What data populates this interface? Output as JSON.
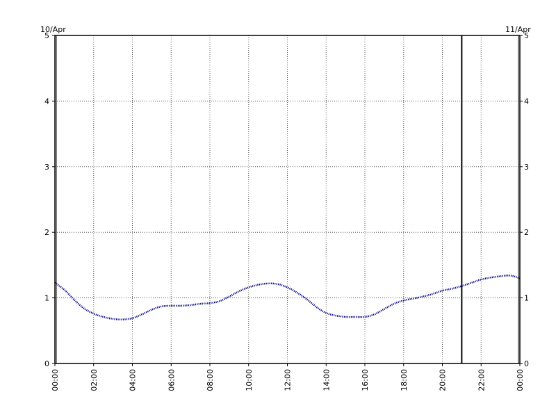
{
  "chart_data": {
    "type": "line",
    "title": "",
    "xlabel": "",
    "ylabel": "",
    "date_left": "10/Apr",
    "date_right": "11/Apr",
    "x_tick_labels": [
      "00:00",
      "02:00",
      "04:00",
      "06:00",
      "08:00",
      "10:00",
      "12:00",
      "14:00",
      "16:00",
      "18:00",
      "20:00",
      "22:00",
      "00:00"
    ],
    "y_tick_labels": [
      "0",
      "1",
      "2",
      "3",
      "4",
      "5"
    ],
    "xlim_hours": [
      0,
      24
    ],
    "ylim": [
      0,
      5
    ],
    "grid": true,
    "marker_hour": 21,
    "series": [
      {
        "color": "#000080",
        "style": "dotted",
        "x_hours": [
          0,
          0.5,
          1,
          1.5,
          2,
          2.5,
          3,
          3.5,
          4,
          4.5,
          5,
          5.5,
          6,
          6.5,
          7,
          7.5,
          8,
          8.5,
          9,
          9.5,
          10,
          10.5,
          11,
          11.5,
          12,
          12.5,
          13,
          13.5,
          14,
          14.5,
          15,
          15.5,
          16,
          16.5,
          17,
          17.5,
          18,
          18.5,
          19,
          19.5,
          20,
          20.5,
          21,
          21.5,
          22,
          22.5,
          23,
          23.5,
          24
        ],
        "values": [
          1.23,
          1.12,
          0.97,
          0.84,
          0.76,
          0.71,
          0.68,
          0.67,
          0.69,
          0.75,
          0.82,
          0.87,
          0.88,
          0.88,
          0.89,
          0.91,
          0.92,
          0.95,
          1.02,
          1.1,
          1.16,
          1.2,
          1.22,
          1.21,
          1.16,
          1.08,
          0.98,
          0.86,
          0.77,
          0.73,
          0.71,
          0.71,
          0.71,
          0.75,
          0.83,
          0.91,
          0.96,
          0.99,
          1.02,
          1.06,
          1.11,
          1.14,
          1.18,
          1.23,
          1.28,
          1.31,
          1.33,
          1.34,
          1.3
        ]
      }
    ]
  }
}
